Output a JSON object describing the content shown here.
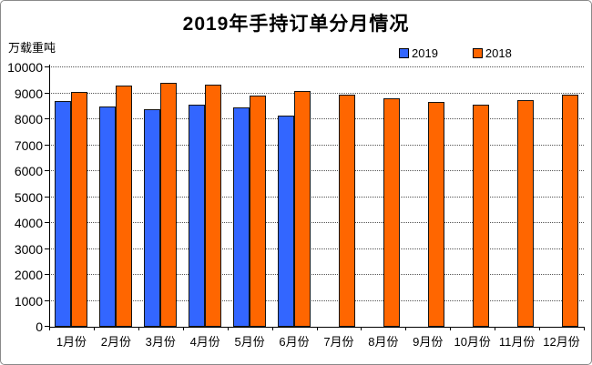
{
  "chart": {
    "title": "2019年手持订单分月情况",
    "unit_label": "万载重吨"
  },
  "chart_data": {
    "type": "bar",
    "title": "2019年手持订单分月情况",
    "ylabel": "万载重吨",
    "xlabel": "",
    "categories": [
      "1月份",
      "2月份",
      "3月份",
      "4月份",
      "5月份",
      "6月份",
      "7月份",
      "8月份",
      "9月份",
      "10月份",
      "11月份",
      "12月份"
    ],
    "series": [
      {
        "name": "2019",
        "color": "#3366FF",
        "values": [
          8700,
          8500,
          8400,
          8550,
          8450,
          8150,
          null,
          null,
          null,
          null,
          null,
          null
        ]
      },
      {
        "name": "2018",
        "color": "#FF6600",
        "values": [
          9050,
          9300,
          9400,
          9350,
          8900,
          9100,
          8950,
          8800,
          8650,
          8550,
          8750,
          8950
        ]
      }
    ],
    "ylim": [
      0,
      10000
    ],
    "ytick_step": 1000,
    "grid": true,
    "legend_position": "top-right"
  }
}
